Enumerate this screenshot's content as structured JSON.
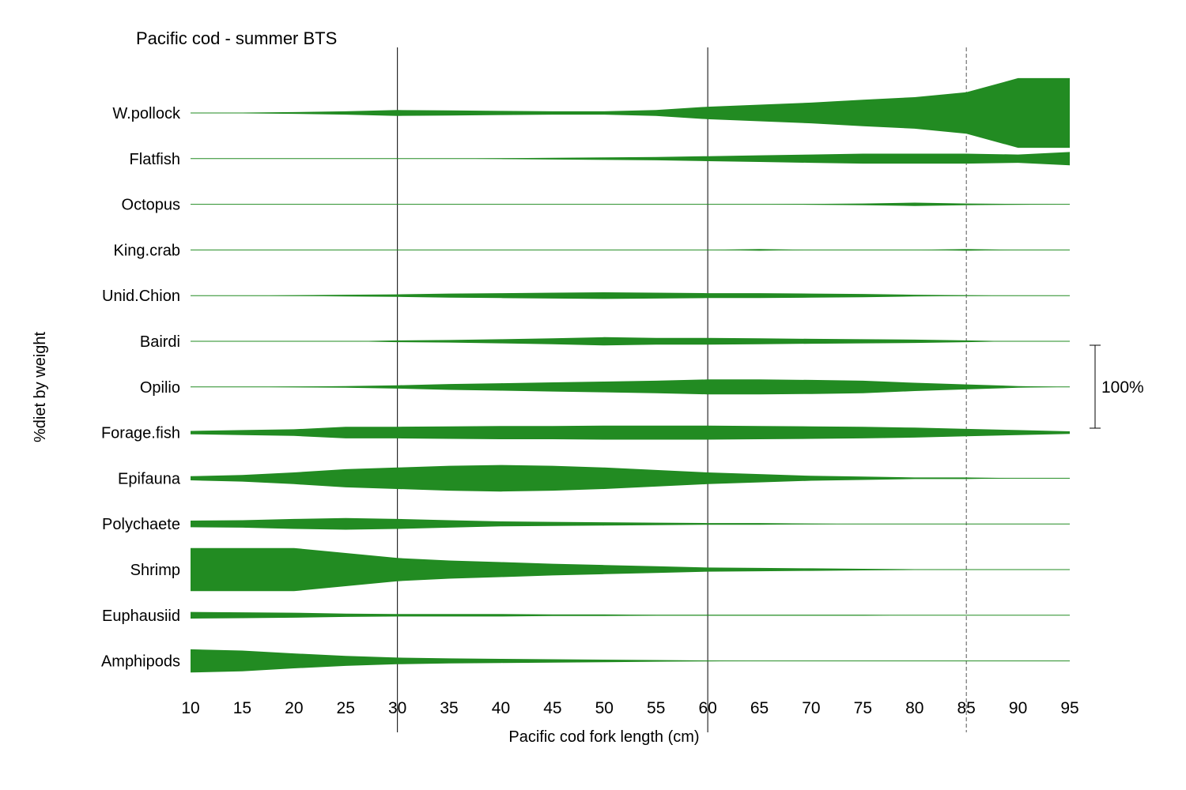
{
  "chart_data": {
    "type": "area",
    "title": "Pacific cod - summer BTS",
    "xlabel": "Pacific cod fork length (cm)",
    "ylabel": "%diet by weight",
    "x_ticks": [
      10,
      15,
      20,
      25,
      30,
      35,
      40,
      45,
      50,
      55,
      60,
      65,
      70,
      75,
      80,
      85,
      90,
      95
    ],
    "xlim": [
      10,
      95
    ],
    "reference_lines": [
      {
        "x": 30,
        "style": "solid"
      },
      {
        "x": 60,
        "style": "solid"
      },
      {
        "x": 85,
        "style": "dashed"
      }
    ],
    "scale_bar_label": "100%",
    "fill_color": "#228B22",
    "x": [
      10,
      15,
      20,
      25,
      30,
      35,
      40,
      45,
      50,
      55,
      60,
      65,
      70,
      75,
      80,
      85,
      90,
      95
    ],
    "series": [
      {
        "name": "W.pollock",
        "values": [
          0,
          1,
          2,
          4,
          7,
          6,
          5,
          4,
          4,
          7,
          15,
          20,
          25,
          32,
          38,
          50,
          84,
          84
        ]
      },
      {
        "name": "Flatfish",
        "values": [
          0,
          0,
          0,
          0,
          0,
          0,
          1,
          2,
          3,
          4,
          6,
          8,
          10,
          12,
          12,
          12,
          10,
          16
        ]
      },
      {
        "name": "Octopus",
        "values": [
          0,
          0,
          0,
          0,
          0,
          0,
          0,
          0,
          0,
          0,
          0,
          0,
          1,
          2,
          4,
          2,
          1,
          0
        ]
      },
      {
        "name": "King.crab",
        "values": [
          0,
          0,
          0,
          0,
          0,
          0,
          0,
          0,
          0,
          0,
          0,
          2,
          0,
          0,
          0,
          2,
          0,
          0
        ]
      },
      {
        "name": "Unid.Chion",
        "values": [
          0,
          0,
          1,
          2,
          3,
          5,
          6,
          7,
          8,
          7,
          6,
          6,
          5,
          4,
          2,
          1,
          0,
          0
        ]
      },
      {
        "name": "Bairdi",
        "values": [
          0,
          0,
          1,
          0,
          2,
          3,
          5,
          7,
          10,
          8,
          8,
          7,
          6,
          5,
          4,
          2,
          0,
          0
        ]
      },
      {
        "name": "Opilio",
        "values": [
          0,
          0,
          1,
          2,
          4,
          7,
          9,
          11,
          13,
          15,
          18,
          18,
          17,
          15,
          10,
          6,
          2,
          0
        ]
      },
      {
        "name": "Forage.fish",
        "values": [
          4,
          6,
          8,
          14,
          14,
          15,
          16,
          16,
          17,
          17,
          17,
          16,
          15,
          14,
          12,
          9,
          6,
          3
        ]
      },
      {
        "name": "Epifauna",
        "values": [
          5,
          8,
          14,
          22,
          26,
          30,
          32,
          30,
          26,
          20,
          14,
          10,
          6,
          4,
          2,
          2,
          0,
          0
        ]
      },
      {
        "name": "Polychaete",
        "values": [
          8,
          9,
          12,
          14,
          12,
          9,
          6,
          5,
          4,
          3,
          2,
          2,
          1,
          0,
          0,
          0,
          0,
          0
        ]
      },
      {
        "name": "Shrimp",
        "values": [
          52,
          52,
          52,
          40,
          28,
          22,
          18,
          14,
          11,
          8,
          5,
          4,
          3,
          2,
          1,
          0,
          0,
          0
        ]
      },
      {
        "name": "Euphausiid",
        "values": [
          8,
          7,
          6,
          4,
          3,
          3,
          3,
          2,
          2,
          1,
          1,
          1,
          1,
          1,
          0,
          0,
          0,
          0
        ]
      },
      {
        "name": "Amphipods",
        "values": [
          28,
          25,
          18,
          12,
          8,
          6,
          5,
          4,
          3,
          2,
          1,
          0,
          0,
          0,
          0,
          0,
          0,
          0
        ]
      }
    ]
  }
}
